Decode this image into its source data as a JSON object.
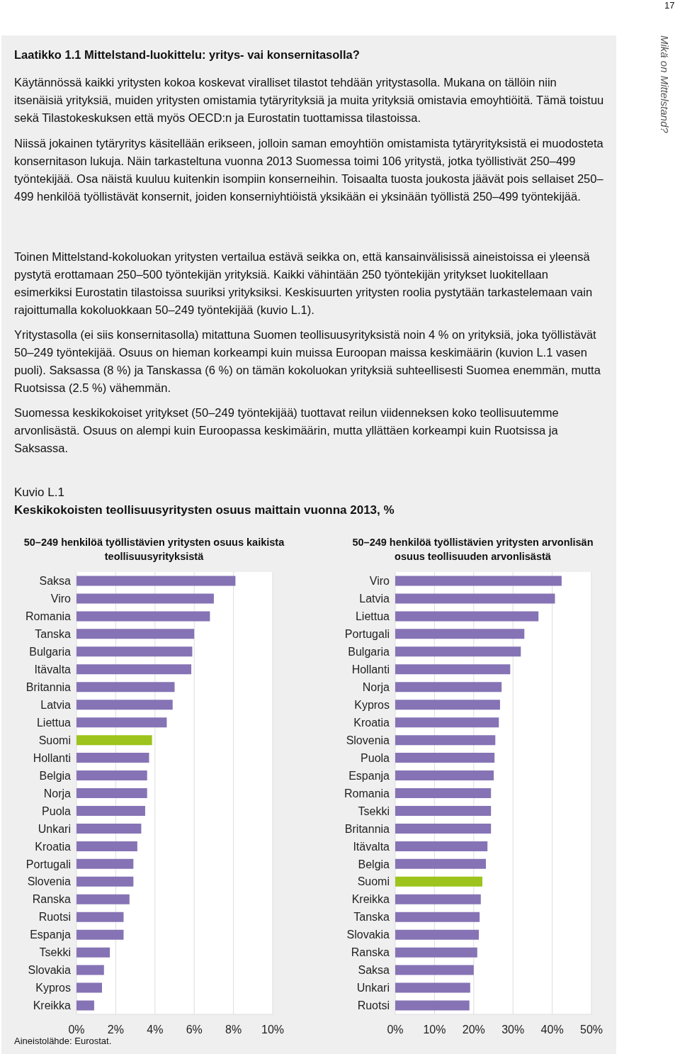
{
  "chart_data": [
    {
      "type": "bar",
      "orientation": "horizontal",
      "title": "50–249 henkilöä työllistävien yritysten osuus kaikista teollisuusyrityksistä",
      "annotations": [
        "17",
        "Mikä on Mittelstand?",
        "Laatikko 1.1 Mittelstand-luokittelu: yritys- vai konsernitasolla?",
        "Käytännössä kaikki yritysten kokoa koskevat viralliset tilastot tehdään yritystasolla. Mukana on tällöin niin itsenäisiä yrityksiä, muiden yritysten omistamia tytäryrityksiä ja muita yrityksiä omistavia emoyhtiöitä. Tämä toistuu sekä Tilastokeskuksen että myös OECD:n ja Eurostatin tuottamissa tilastoissa.",
        "Niissä jokainen tytäryritys käsitellään erikseen, jolloin saman emoyhtiön omistamista tytäryrityksistä ei muodosteta konsernitason lukuja. Näin tarkasteltuna vuonna 2013 Suomessa toimi 106 yritystä, jotka työllistivät 250–499 työntekijää. Osa näistä kuuluu kuitenkin isompiin konserneihin. Toisaalta tuosta joukosta jäävät pois sellaiset 250–499 henkilöä työllistävät konsernit, joiden konserniyhtiöistä yksikään ei yksinään työllistä 250–499 työntekijää.",
        "Toinen Mittelstand-kokoluokan yritysten vertailua estävä seikka on, että kansainvälisissä aineistoissa ei yleensä pystytä erottamaan 250–500 työntekijän yrityksiä. Kaikki vähintään 250 työntekijän yritykset luokitellaan esimerkiksi Eurostatin tilastoissa suuriksi yrityksiksi. Keskisuurten yritysten roolia pystytään tarkastelemaan vain rajoittumalla kokoluokkaan 50–249 työntekijää (kuvio L.1).",
        "Yritystasolla (ei siis konsernitasolla) mitattuna Suomen teollisuusyrityksistä noin 4 % on yrityksiä, joka työllistävät 50–249 työntekijää. Osuus on hieman korkeampi kuin muissa Euroopan maissa keskimäärin (kuvion L.1 vasen puoli). Saksassa (8 %) ja Tanskassa (6 %) on tämän kokoluokan yrityksiä suhteellisesti Suomea enemmän, mutta Ruotsissa (2.5 %) vähemmän.",
        "Suomessa keskikokoiset yritykset (50–249 työntekijää) tuottavat reilun viidenneksen koko teollisuutemme arvonlisästä. Osuus on alempi kuin Euroopassa keskimäärin, mutta yllättäen korkeampi kuin Ruotsissa ja Saksassa.",
        "Kuvio L.1",
        "Keskikokoisten teollisuusyritysten osuus maittain vuonna 2013, %",
        "Aineistolähde: Eurostat."
      ],
      "categories": [
        "Saksa",
        "Viro",
        "Romania",
        "Tanska",
        "Bulgaria",
        "Itävalta",
        "Britannia",
        "Latvia",
        "Liettua",
        "Suomi",
        "Hollanti",
        "Belgia",
        "Norja",
        "Puola",
        "Unkari",
        "Kroatia",
        "Portugali",
        "Slovenia",
        "Ranska",
        "Ruotsi",
        "Espanja",
        "Tsekki",
        "Slovakia",
        "Kypros",
        "Kreikka"
      ],
      "values": [
        8.1,
        7.0,
        6.8,
        6.0,
        5.9,
        5.85,
        5.0,
        4.9,
        4.6,
        3.85,
        3.7,
        3.6,
        3.6,
        3.5,
        3.3,
        3.1,
        2.9,
        2.9,
        2.7,
        2.4,
        2.4,
        1.7,
        1.4,
        1.3,
        0.9
      ],
      "colors": [
        "#8573b5",
        "#8573b5",
        "#8573b5",
        "#8573b5",
        "#8573b5",
        "#8573b5",
        "#8573b5",
        "#8573b5",
        "#8573b5",
        "#9cc41c",
        "#8573b5",
        "#8573b5",
        "#8573b5",
        "#8573b5",
        "#8573b5",
        "#8573b5",
        "#8573b5",
        "#8573b5",
        "#8573b5",
        "#8573b5",
        "#8573b5",
        "#8573b5",
        "#8573b5",
        "#8573b5",
        "#8573b5"
      ],
      "xlim": [
        0,
        10
      ],
      "xticks": [
        {
          "value": 0,
          "label": "0%"
        },
        {
          "value": 2,
          "label": "2%"
        },
        {
          "value": 4,
          "label": "4%"
        },
        {
          "value": 6,
          "label": "6%"
        },
        {
          "value": 8,
          "label": "8%"
        },
        {
          "value": 10,
          "label": "10%"
        }
      ],
      "grid": "x"
    },
    {
      "type": "bar",
      "orientation": "horizontal",
      "title": "50–249 henkilöä työllistävien yritysten arvonlisän osuus teollisuuden arvonlisästä",
      "categories": [
        "Viro",
        "Latvia",
        "Liettua",
        "Portugali",
        "Bulgaria",
        "Hollanti",
        "Norja",
        "Kypros",
        "Kroatia",
        "Slovenia",
        "Puola",
        "Espanja",
        "Romania",
        "Tsekki",
        "Britannia",
        "Itävalta",
        "Belgia",
        "Suomi",
        "Kreikka",
        "Tanska",
        "Slovakia",
        "Ranska",
        "Saksa",
        "Unkari",
        "Ruotsi"
      ],
      "values": [
        42.4,
        40.7,
        36.5,
        32.9,
        32.0,
        29.3,
        27.1,
        26.7,
        26.4,
        25.5,
        25.3,
        25.1,
        24.4,
        24.4,
        24.4,
        23.5,
        23.1,
        22.2,
        21.8,
        21.5,
        21.3,
        20.9,
        20.0,
        19.1,
        18.9
      ],
      "colors": [
        "#8573b5",
        "#8573b5",
        "#8573b5",
        "#8573b5",
        "#8573b5",
        "#8573b5",
        "#8573b5",
        "#8573b5",
        "#8573b5",
        "#8573b5",
        "#8573b5",
        "#8573b5",
        "#8573b5",
        "#8573b5",
        "#8573b5",
        "#8573b5",
        "#8573b5",
        "#9cc41c",
        "#8573b5",
        "#8573b5",
        "#8573b5",
        "#8573b5",
        "#8573b5",
        "#8573b5",
        "#8573b5"
      ],
      "xlim": [
        0,
        50
      ],
      "xticks": [
        {
          "value": 0,
          "label": "0%"
        },
        {
          "value": 10,
          "label": "10%"
        },
        {
          "value": 20,
          "label": "20%"
        },
        {
          "value": 30,
          "label": "30%"
        },
        {
          "value": 40,
          "label": "40%"
        },
        {
          "value": 50,
          "label": "50%"
        }
      ],
      "grid": "x"
    }
  ]
}
